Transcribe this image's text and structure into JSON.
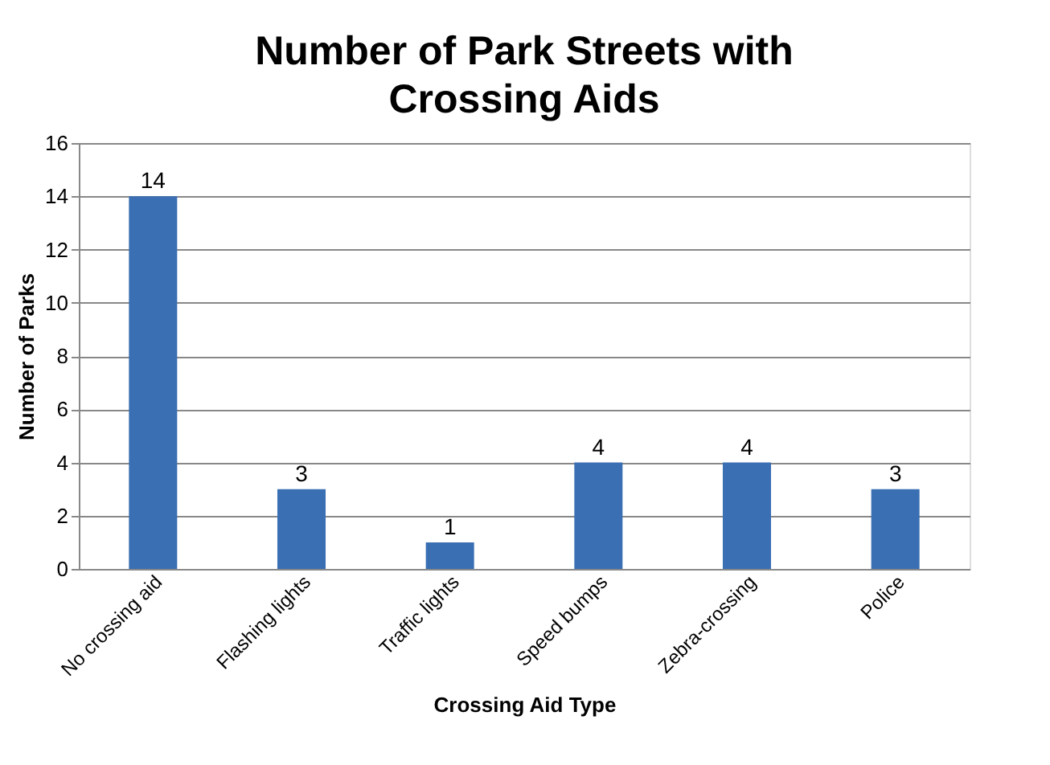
{
  "chart_data": {
    "type": "bar",
    "title": "Number of Park Streets with\nCrossing Aids",
    "xlabel": "Crossing Aid Type",
    "ylabel": "Number of Parks",
    "categories": [
      "No crossing aid",
      "Flashing lights",
      "Traffic lights",
      "Speed bumps",
      "Zebra-crossing",
      "Police"
    ],
    "values": [
      14,
      3,
      1,
      4,
      4,
      3
    ],
    "color": "#3a6fb3",
    "ylim": [
      0,
      16
    ],
    "yticks": [
      0,
      2,
      4,
      6,
      8,
      10,
      12,
      14,
      16
    ],
    "grid": "y",
    "data_labels": true
  }
}
